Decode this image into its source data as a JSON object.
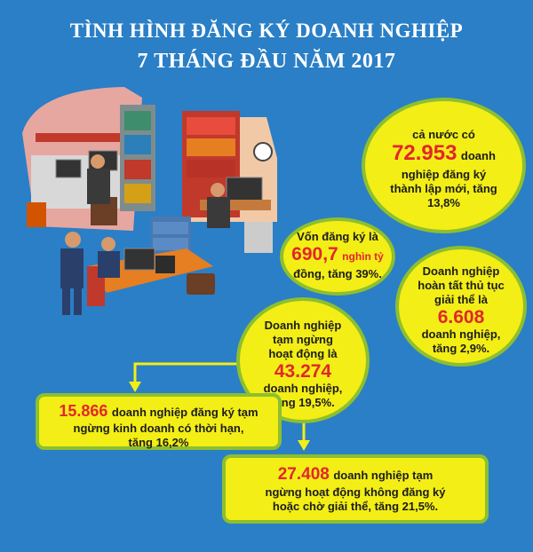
{
  "title": {
    "line1": "TÌNH HÌNH ĐĂNG KÝ DOANH NGHIỆP",
    "line2": "7 THÁNG ĐẦU NĂM 2017"
  },
  "bubble_new": {
    "pre": "cả nước có",
    "number": "72.953",
    "after": "doanh",
    "line3": "nghiệp đăng ký",
    "line4": "thành lập mới, tăng",
    "line5": "13,8%"
  },
  "bubble_capital": {
    "pre": "Vốn đăng ký là",
    "number": "690,7",
    "unit": "nghìn tỷ",
    "post": "đồng, tăng 39%."
  },
  "bubble_dissolved": {
    "l1": "Doanh nghiệp",
    "l2": "hoàn tất thủ tục",
    "l3": "giải thể là",
    "number": "6.608",
    "l5": "doanh nghiệp,",
    "l6": "tăng 2,9%."
  },
  "bubble_suspended": {
    "l1": "Doanh nghiệp",
    "l2": "tạm ngừng",
    "l3": "hoạt động là",
    "number": "43.274",
    "l5": "doanh nghiệp,",
    "l6": "tăng 19,5%."
  },
  "box_registered_pause": {
    "number": "15.866",
    "l1": "doanh nghiệp đăng ký tạm",
    "l2": "ngừng kinh doanh có thời hạn,",
    "l3": "tăng 16,2%"
  },
  "box_unregistered_pause": {
    "number": "27.408",
    "l1": "doanh nghiệp tạm",
    "l2": "ngừng hoạt động không đăng ký",
    "l3": "hoặc chờ giải thể, tăng 21,5%."
  },
  "colors": {
    "background": "#2a7fc6",
    "bubble": "#f3ee16",
    "border": "#8dbf2f",
    "number": "#e3262b",
    "arrow": "#f3ee16"
  }
}
